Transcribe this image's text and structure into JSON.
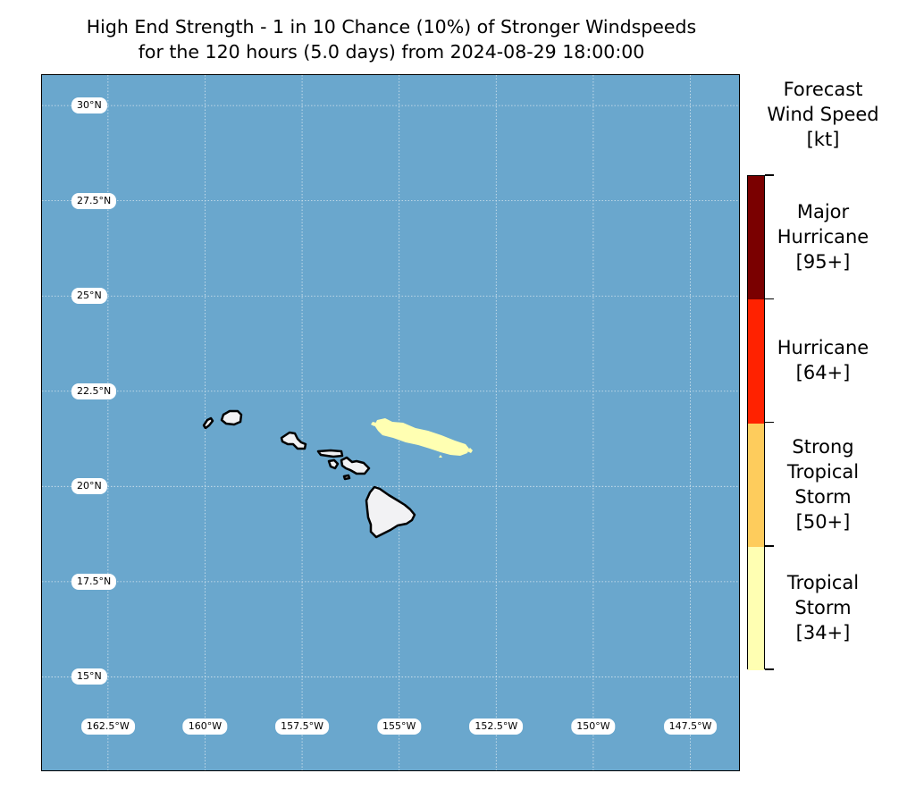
{
  "title": {
    "line1": "High End Strength - 1 in 10 Chance (10%) of Stronger Windspeeds",
    "line2": "for the 120 hours (5.0 days) from 2024-08-29 18:00:00"
  },
  "map": {
    "extent": {
      "lon_min": -164.2,
      "lon_max": -146.2,
      "lat_min": 12.5,
      "lat_max": 30.8
    },
    "ocean_color": "#6aa7cd",
    "land_color": "#f2f2f4",
    "gridlines": "dotted",
    "lat_labels": [
      "30°N",
      "27.5°N",
      "25°N",
      "22.5°N",
      "20°N",
      "17.5°N",
      "15°N"
    ],
    "lat_values": [
      30,
      27.5,
      25,
      22.5,
      20,
      17.5,
      15
    ],
    "lon_labels": [
      "162.5°W",
      "160°W",
      "157.5°W",
      "155°W",
      "152.5°W",
      "150°W",
      "147.5°W"
    ],
    "lon_values": [
      -162.5,
      -160,
      -157.5,
      -155,
      -152.5,
      -150,
      -147.5
    ],
    "islands": [
      "Niihau",
      "Kauai",
      "Oahu",
      "Molokai",
      "Lanai",
      "Maui",
      "Kahoolawe",
      "Hawaii"
    ],
    "wind_swath": {
      "category": "Tropical Storm [34+]",
      "color": "#ffffb2",
      "description_center_lon": -154.9,
      "description_center_lat": 21.4
    }
  },
  "colorbar": {
    "title": [
      "Forecast",
      "Wind Speed",
      "[kt]"
    ],
    "categories": [
      {
        "lines": [
          "Major",
          "Hurricane",
          "[95+]"
        ],
        "color": "#7a0000"
      },
      {
        "lines": [
          "Hurricane",
          "[64+]"
        ],
        "color": "#ff2200"
      },
      {
        "lines": [
          "Strong",
          "Tropical",
          "Storm",
          "[50+]"
        ],
        "color": "#fecc5c"
      },
      {
        "lines": [
          "Tropical",
          "Storm",
          "[34+]"
        ],
        "color": "#ffffb2"
      }
    ]
  }
}
